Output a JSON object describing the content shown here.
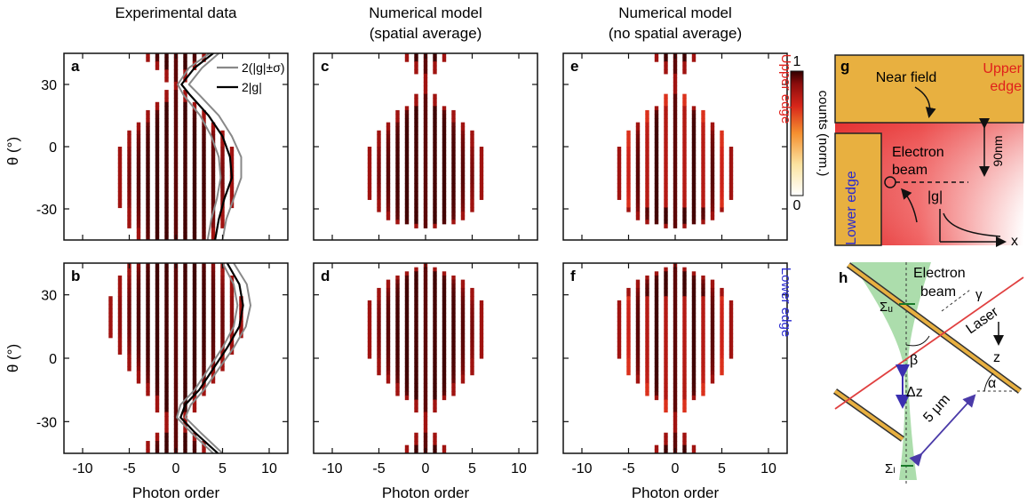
{
  "column_titles": {
    "experimental": "Experimental data",
    "spatial_average_1": "Numerical model",
    "spatial_average_2": "(spatial average)",
    "no_average_1": "Numerical model",
    "no_average_2": "(no spatial average)"
  },
  "panel_letters": [
    "a",
    "b",
    "c",
    "d",
    "e",
    "f",
    "g",
    "h"
  ],
  "axes": {
    "xlabel": "Photon order",
    "ylabel": "θ (°)",
    "xticks": [
      "-10",
      "-5",
      "0",
      "5",
      "10"
    ],
    "yticks": [
      "30",
      "0",
      "-30"
    ]
  },
  "colorbar": {
    "label": "counts (norm.)",
    "max": "1",
    "min": "0"
  },
  "row_labels": {
    "upper": "Upper edge",
    "lower": "Lower edge"
  },
  "colors": {
    "upper_edge": "#e0201b",
    "lower_edge": "#2a2ad0",
    "gold": "#e8b040",
    "near_field": "#e03030",
    "laser": "#e04040",
    "beam": "#9dd79d",
    "dz_arrow": "#3a2fb0",
    "dist_arrow": "#4a3aa8"
  },
  "legend": [
    {
      "label": "2(|g|±σ)",
      "color": "#888888"
    },
    {
      "label": "2|g|",
      "color": "#000000"
    }
  ],
  "schematic_g": {
    "upper_edge_line1": "Upper",
    "upper_edge_line2": "edge",
    "near_field": "Near field",
    "electron_line1": "Electron",
    "electron_line2": "beam",
    "lower_edge": "Lower edge",
    "gap": "90nm",
    "coupling": "|g|",
    "x_axis": "x"
  },
  "schematic_h": {
    "electron_line1": "Electron",
    "electron_line2": "beam",
    "laser": "Laser",
    "z_axis": "z",
    "sigma_u": "Σᵤ",
    "sigma_l": "Σₗ",
    "beta": "β",
    "gamma": "γ",
    "alpha": "α",
    "dz": "Δz",
    "distance": "5 μm"
  },
  "chart_data": [
    {
      "panel": "a",
      "type": "heatmap",
      "title": "Experimental data",
      "row": "Upper edge",
      "xlabel": "Photon order",
      "ylabel": "θ (°)",
      "xlim": [
        -12,
        12
      ],
      "ylim": [
        -45,
        45
      ],
      "colormap": "white-yellow-red-black",
      "zlim": [
        0,
        1
      ],
      "peak_spacing": 1,
      "envelope_theta": [
        -45,
        -35,
        -25,
        -15,
        -5,
        5,
        15,
        25,
        30,
        35,
        45
      ],
      "envelope_halfwidth": [
        4.5,
        5.5,
        6.5,
        7.0,
        6.5,
        5.5,
        3.5,
        1.2,
        0.6,
        1.5,
        4.0
      ],
      "series": [
        {
          "name": "2|g|",
          "theta": [
            45,
            38,
            30,
            25,
            15,
            5,
            -5,
            -15,
            -25,
            -35,
            -45
          ],
          "value": [
            4.0,
            2.0,
            0.6,
            1.5,
            3.5,
            5.0,
            5.8,
            6.0,
            5.2,
            4.6,
            4.2
          ]
        },
        {
          "name": "2(|g|±σ) upper",
          "theta": [
            45,
            38,
            30,
            25,
            15,
            5,
            -5,
            -15,
            -25,
            -35,
            -45
          ],
          "value": [
            4.6,
            2.8,
            1.4,
            2.5,
            4.6,
            6.0,
            7.0,
            7.0,
            6.2,
            5.4,
            5.0
          ]
        },
        {
          "name": "2(|g|±σ) lower",
          "theta": [
            45,
            38,
            30,
            25,
            15,
            5,
            -5,
            -15,
            -25,
            -35,
            -45
          ],
          "value": [
            3.6,
            1.4,
            0.2,
            0.8,
            2.6,
            3.8,
            4.6,
            4.8,
            4.4,
            3.8,
            3.4
          ]
        }
      ]
    },
    {
      "panel": "b",
      "type": "heatmap",
      "title": "Experimental data",
      "row": "Lower edge",
      "xlabel": "Photon order",
      "ylabel": "θ (°)",
      "xlim": [
        -12,
        12
      ],
      "ylim": [
        -45,
        45
      ],
      "colormap": "white-yellow-red-black",
      "zlim": [
        0,
        1
      ],
      "peak_spacing": 1,
      "envelope_theta": [
        -45,
        -35,
        -30,
        -25,
        -15,
        -5,
        5,
        15,
        25,
        35,
        45
      ],
      "envelope_halfwidth": [
        4.0,
        2.0,
        1.0,
        2.0,
        3.5,
        5.0,
        6.5,
        7.5,
        7.5,
        6.5,
        5.0
      ],
      "series": [
        {
          "name": "2|g|",
          "theta": [
            45,
            35,
            25,
            15,
            5,
            -5,
            -15,
            -22,
            -28,
            -35,
            -45
          ],
          "value": [
            5.5,
            6.8,
            7.2,
            6.8,
            5.5,
            4.0,
            2.5,
            1.0,
            0.5,
            2.0,
            4.5
          ]
        },
        {
          "name": "2(|g|±σ) upper",
          "theta": [
            45,
            35,
            25,
            15,
            5,
            -5,
            -15,
            -22,
            -28,
            -35,
            -45
          ],
          "value": [
            6.2,
            7.6,
            8.0,
            7.5,
            6.2,
            4.6,
            3.0,
            1.6,
            1.0,
            2.6,
            5.0
          ]
        },
        {
          "name": "2(|g|±σ) lower",
          "theta": [
            45,
            35,
            25,
            15,
            5,
            -5,
            -15,
            -22,
            -28,
            -35,
            -45
          ],
          "value": [
            5.0,
            6.2,
            6.6,
            6.2,
            5.0,
            3.5,
            2.0,
            0.5,
            0.1,
            1.6,
            4.0
          ]
        }
      ]
    },
    {
      "panel": "c",
      "type": "heatmap",
      "title": "Numerical model (spatial average)",
      "row": "Upper edge",
      "xlabel": "Photon order",
      "xlim": [
        -12,
        12
      ],
      "ylim": [
        -45,
        45
      ],
      "zlim": [
        0,
        1
      ],
      "peak_spacing": 1,
      "envelope_theta": [
        -45,
        -40,
        -35,
        -25,
        -15,
        -5,
        5,
        15,
        22,
        28,
        32,
        38,
        45
      ],
      "envelope_halfwidth": [
        0,
        0,
        4.5,
        6.0,
        7.0,
        6.5,
        5.5,
        3.5,
        1.5,
        0.5,
        0.5,
        1.5,
        2.5
      ]
    },
    {
      "panel": "d",
      "type": "heatmap",
      "title": "Numerical model (spatial average)",
      "row": "Lower edge",
      "xlabel": "Photon order",
      "xlim": [
        -12,
        12
      ],
      "ylim": [
        -45,
        45
      ],
      "zlim": [
        0,
        1
      ],
      "peak_spacing": 1,
      "envelope_theta": [
        -45,
        -38,
        -32,
        -28,
        -22,
        -15,
        -5,
        5,
        15,
        25,
        35,
        45
      ],
      "envelope_halfwidth": [
        2.5,
        1.5,
        0.5,
        0.5,
        1.5,
        3.5,
        5.5,
        6.5,
        7.0,
        6.5,
        4.5,
        0.5
      ]
    },
    {
      "panel": "e",
      "type": "heatmap",
      "title": "Numerical model (no spatial average)",
      "row": "Upper edge",
      "xlabel": "Photon order",
      "xlim": [
        -12,
        12
      ],
      "ylim": [
        -45,
        45
      ],
      "zlim": [
        0,
        1
      ],
      "peak_spacing": 1,
      "envelope_theta": [
        -45,
        -40,
        -35,
        -25,
        -15,
        -5,
        5,
        15,
        22,
        28,
        32,
        38,
        45
      ],
      "envelope_halfwidth": [
        0,
        0,
        4.5,
        6.0,
        7.0,
        6.5,
        5.5,
        3.5,
        1.5,
        0.5,
        0.5,
        1.5,
        2.5
      ]
    },
    {
      "panel": "f",
      "type": "heatmap",
      "title": "Numerical model (no spatial average)",
      "row": "Lower edge",
      "xlabel": "Photon order",
      "xlim": [
        -12,
        12
      ],
      "ylim": [
        -45,
        45
      ],
      "zlim": [
        0,
        1
      ],
      "peak_spacing": 1,
      "envelope_theta": [
        -45,
        -38,
        -32,
        -28,
        -22,
        -15,
        -5,
        5,
        15,
        25,
        35,
        45
      ],
      "envelope_halfwidth": [
        2.5,
        1.5,
        0.5,
        0.5,
        1.5,
        3.5,
        5.5,
        6.5,
        7.0,
        6.5,
        4.5,
        0.5
      ]
    }
  ]
}
